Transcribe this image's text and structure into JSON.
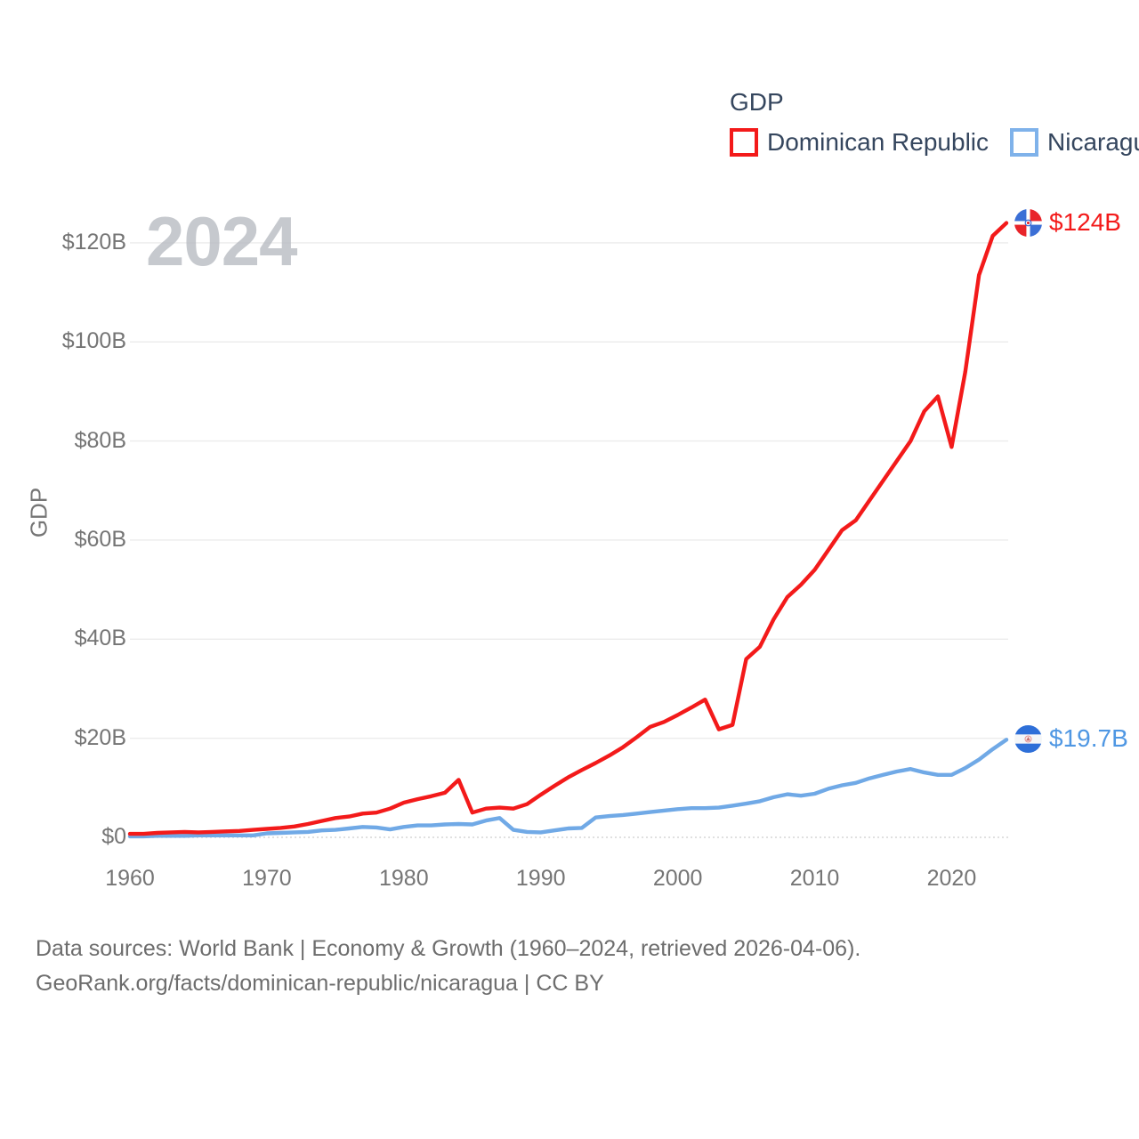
{
  "legend": {
    "title": "GDP",
    "items": [
      {
        "label": "Dominican Republic",
        "color": "#f31a1a"
      },
      {
        "label": "Nicaragua",
        "color": "#7fb2ea"
      }
    ]
  },
  "watermark": "2024",
  "y_axis": {
    "title": "GDP",
    "ticks": [
      {
        "value": 0,
        "label": "$0"
      },
      {
        "value": 20,
        "label": "$20B"
      },
      {
        "value": 40,
        "label": "$40B"
      },
      {
        "value": 60,
        "label": "$60B"
      },
      {
        "value": 80,
        "label": "$80B"
      },
      {
        "value": 100,
        "label": "$100B"
      },
      {
        "value": 120,
        "label": "$120B"
      }
    ]
  },
  "x_axis": {
    "ticks": [
      1960,
      1970,
      1980,
      1990,
      2000,
      2010,
      2020
    ]
  },
  "end_labels": [
    {
      "series": "Dominican Republic",
      "label": "$124B",
      "color": "#f31a1a"
    },
    {
      "series": "Nicaragua",
      "label": "$19.7B",
      "color": "#4f97e3"
    }
  ],
  "source": {
    "line1": "Data sources: World Bank | Economy & Growth (1960–2024, retrieved 2026-04-06).",
    "line2": "GeoRank.org/facts/dominican-republic/nicaragua | CC BY"
  },
  "chart_data": {
    "type": "line",
    "title": "GDP",
    "xlabel": "",
    "ylabel": "GDP",
    "x_range": [
      1960,
      2024
    ],
    "ylim": [
      0,
      128
    ],
    "grid": true,
    "legend_position": "top-right",
    "x": [
      1960,
      1961,
      1962,
      1963,
      1964,
      1965,
      1966,
      1967,
      1968,
      1969,
      1970,
      1971,
      1972,
      1973,
      1974,
      1975,
      1976,
      1977,
      1978,
      1979,
      1980,
      1981,
      1982,
      1983,
      1984,
      1985,
      1986,
      1987,
      1988,
      1989,
      1990,
      1991,
      1992,
      1993,
      1994,
      1995,
      1996,
      1997,
      1998,
      1999,
      2000,
      2001,
      2002,
      2003,
      2004,
      2005,
      2006,
      2007,
      2008,
      2009,
      2010,
      2011,
      2012,
      2013,
      2014,
      2015,
      2016,
      2017,
      2018,
      2019,
      2020,
      2021,
      2022,
      2023,
      2024
    ],
    "series": [
      {
        "name": "Dominican Republic",
        "color": "#f31a1a",
        "end_value_label": "$124B",
        "values": [
          0.7,
          0.7,
          0.9,
          1.0,
          1.1,
          1.0,
          1.1,
          1.2,
          1.3,
          1.5,
          1.7,
          1.9,
          2.2,
          2.7,
          3.3,
          3.9,
          4.2,
          4.8,
          5.0,
          5.8,
          7.0,
          7.7,
          8.3,
          9.0,
          11.6,
          5.0,
          5.8,
          6.0,
          5.8,
          6.7,
          8.6,
          10.4,
          12.1,
          13.6,
          15.0,
          16.5,
          18.2,
          20.2,
          22.3,
          23.3,
          24.7,
          26.2,
          27.8,
          21.8,
          22.7,
          36.0,
          38.5,
          44.0,
          48.5,
          51.0,
          54.0,
          58.0,
          62.0,
          64.0,
          68.0,
          72.0,
          76.0,
          80.0,
          86.0,
          89.0,
          78.8,
          94.0,
          113.5,
          121.4,
          124.0
        ]
      },
      {
        "name": "Nicaragua",
        "color": "#70a9e6",
        "end_value_label": "$19.7B",
        "values": [
          0.2,
          0.2,
          0.3,
          0.3,
          0.3,
          0.4,
          0.4,
          0.4,
          0.4,
          0.4,
          0.8,
          0.9,
          1.0,
          1.1,
          1.4,
          1.5,
          1.8,
          2.1,
          2.0,
          1.6,
          2.1,
          2.4,
          2.4,
          2.6,
          2.7,
          2.6,
          3.4,
          3.9,
          1.5,
          1.1,
          1.0,
          1.4,
          1.8,
          1.9,
          4.0,
          4.3,
          4.5,
          4.8,
          5.1,
          5.4,
          5.7,
          5.9,
          5.9,
          6.0,
          6.4,
          6.8,
          7.3,
          8.1,
          8.7,
          8.4,
          8.8,
          9.8,
          10.5,
          11.0,
          11.9,
          12.6,
          13.3,
          13.8,
          13.1,
          12.6,
          12.6,
          14.0,
          15.7,
          17.8,
          19.7
        ]
      }
    ]
  }
}
